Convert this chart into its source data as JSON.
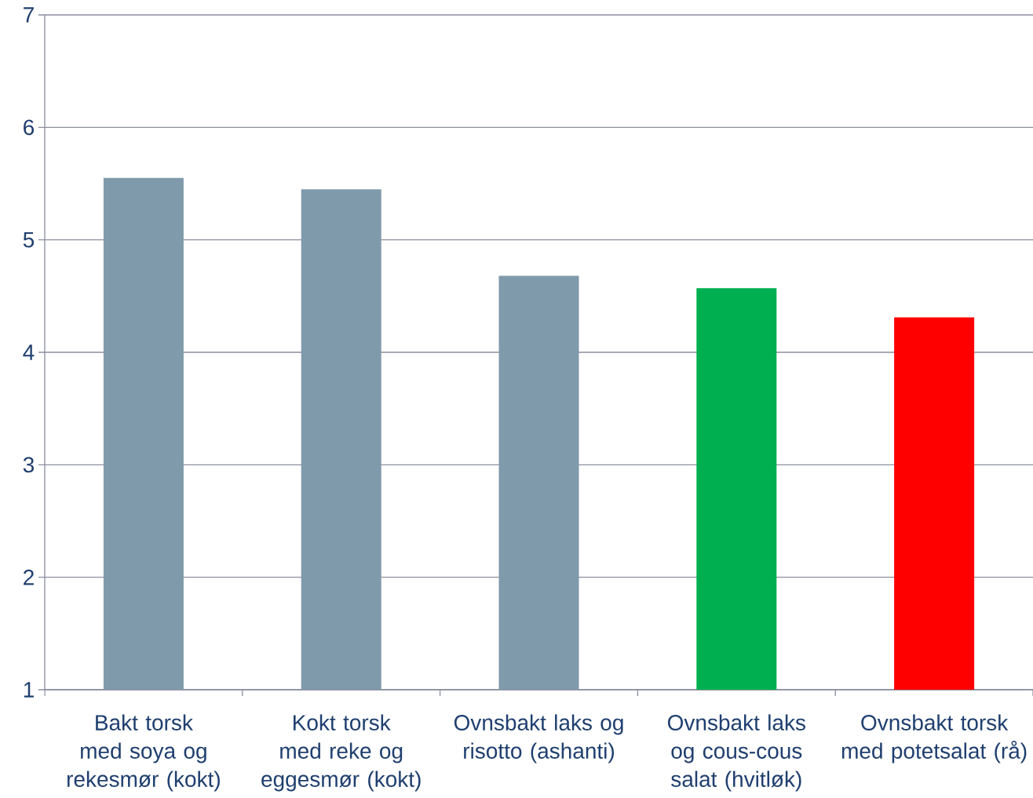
{
  "chart_data": {
    "type": "bar",
    "categories": [
      "Bakt torsk med soya og rekesmør (kokt)",
      "Kokt torsk med reke og eggesmør (kokt)",
      "Ovnsbakt laks og risotto (ashanti)",
      "Ovnsbakt laks og cous-cous salat (hvitløk)",
      "Ovnsbakt torsk med potetsalat (rå)"
    ],
    "values": [
      5.55,
      5.45,
      4.68,
      4.57,
      4.31
    ],
    "colors": [
      "#7f9aab",
      "#7f9aab",
      "#7f9aab",
      "#00b050",
      "#ff0000"
    ],
    "ylim": [
      1,
      7
    ],
    "yticks": [
      1,
      2,
      3,
      4,
      5,
      6,
      7
    ],
    "grid": "y"
  }
}
